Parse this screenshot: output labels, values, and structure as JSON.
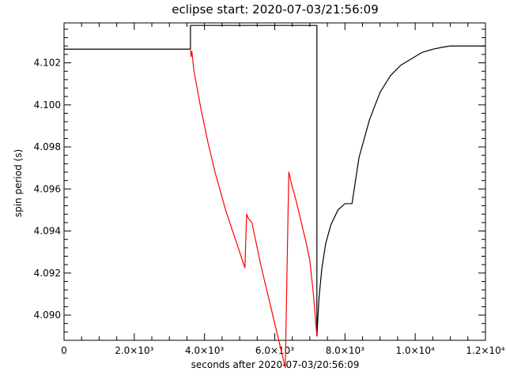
{
  "chart_data": {
    "type": "line",
    "title": "eclipse start: 2020-07-03/21:56:09",
    "xlabel": "seconds after 2020-07-03/20:56:09",
    "ylabel": "spin period (s)",
    "xlim": [
      0,
      12000
    ],
    "ylim": [
      4.0888,
      4.1039
    ],
    "x_tick_labels": [
      "0",
      "2.0×10³",
      "4.0×10³",
      "6.0×10³",
      "8.0×10³",
      "1.0×10⁴",
      "1.2×10⁴"
    ],
    "x_tick_values": [
      0,
      2000,
      4000,
      6000,
      8000,
      10000,
      12000
    ],
    "y_tick_labels": [
      "4.090",
      "4.092",
      "4.094",
      "4.096",
      "4.098",
      "4.100",
      "4.102"
    ],
    "y_tick_values": [
      4.09,
      4.092,
      4.094,
      4.096,
      4.098,
      4.1,
      4.102
    ],
    "grid": false,
    "series": [
      {
        "color": "#000000",
        "x": [
          0,
          3600,
          3600,
          7200,
          7200,
          7260,
          7340,
          7450,
          7600,
          7800,
          8000,
          8200,
          8400,
          8700,
          9000,
          9300,
          9600,
          9900,
          10200,
          10500,
          10800,
          11000,
          11100,
          12000
        ],
        "y": [
          4.10265,
          4.10265,
          4.10378,
          4.10378,
          4.089,
          4.0908,
          4.0922,
          4.0934,
          4.0943,
          4.095,
          4.0953,
          4.0953,
          4.0975,
          4.0993,
          4.1006,
          4.1014,
          4.1019,
          4.1022,
          4.1025,
          4.10265,
          4.10275,
          4.1028,
          4.1028,
          4.1028
        ]
      },
      {
        "color": "#ff0000",
        "x": [
          3600,
          3620,
          3640,
          3700,
          3800,
          3900,
          4000,
          4100,
          4200,
          4300,
          4400,
          4500,
          4600,
          4700,
          4800,
          4900,
          5000,
          5100,
          5150,
          5200,
          5250,
          5300,
          5350,
          5400,
          5500,
          5600,
          5700,
          5800,
          5900,
          6000,
          6100,
          6200,
          6300,
          6400,
          6500,
          6600,
          6700,
          6800,
          6900,
          7000,
          7100,
          7200
        ],
        "y": [
          4.1026,
          4.1023,
          4.10255,
          4.1016,
          4.1007,
          4.0998,
          4.099,
          4.0982,
          4.0975,
          4.0968,
          4.0962,
          4.0956,
          4.095,
          4.0945,
          4.094,
          4.0935,
          4.093,
          4.0925,
          4.09225,
          4.0948,
          4.0946,
          4.0945,
          4.0944,
          4.094,
          4.0932,
          4.0924,
          4.0917,
          4.091,
          4.0903,
          4.0896,
          4.0889,
          4.0882,
          4.0875,
          4.0968,
          4.0961,
          4.0955,
          4.0948,
          4.0941,
          4.0934,
          4.0926,
          4.091,
          4.089
        ]
      }
    ]
  }
}
